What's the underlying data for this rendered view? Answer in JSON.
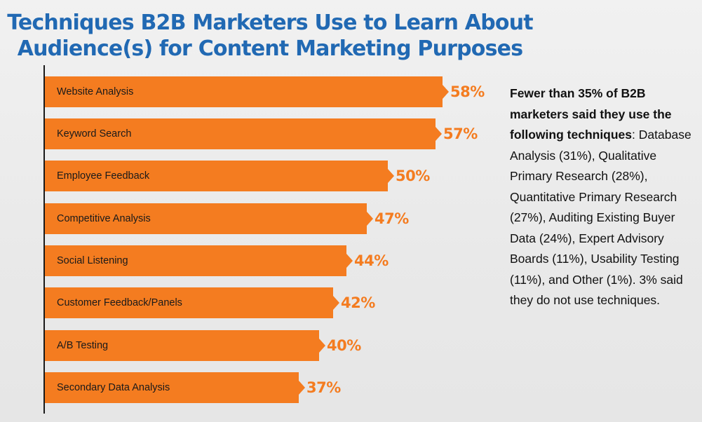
{
  "title_line1": "Techniques B2B Marketers Use to Learn About",
  "title_line2": "Audience(s) for Content Marketing Purposes",
  "colors": {
    "title": "#2169b3",
    "bar": "#f47c20",
    "text": "#111111"
  },
  "bars": [
    {
      "label": "Website Analysis",
      "value_text": "58%"
    },
    {
      "label": "Keyword Search",
      "value_text": "57%"
    },
    {
      "label": "Employee Feedback",
      "value_text": "50%"
    },
    {
      "label": "Competitive Analysis",
      "value_text": "47%"
    },
    {
      "label": "Social Listening",
      "value_text": "44%"
    },
    {
      "label": "Customer Feedback/Panels",
      "value_text": "42%"
    },
    {
      "label": "A/B Testing",
      "value_text": "40%"
    },
    {
      "label": "Secondary Data Analysis",
      "value_text": "37%"
    }
  ],
  "note": {
    "bold": "Fewer than 35% of B2B marketers said they use the following techniques",
    "colon": ":",
    "body": "Database Analysis (31%), Qualitative Primary Research (28%), Quantitative Primary Research (27%), Auditing Existing Buyer Data (24%), Expert Advisory Boards (11%), Usability Testing (11%), and Other (1%). 3% said they do not use techniques."
  },
  "chart_data": {
    "type": "bar",
    "orientation": "horizontal",
    "title": "Techniques B2B Marketers Use to Learn About Audience(s) for Content Marketing Purposes",
    "categories": [
      "Website Analysis",
      "Keyword Search",
      "Employee Feedback",
      "Competitive Analysis",
      "Social Listening",
      "Customer Feedback/Panels",
      "A/B Testing",
      "Secondary Data Analysis"
    ],
    "values": [
      58,
      57,
      50,
      47,
      44,
      42,
      40,
      37
    ],
    "unit": "%",
    "xlabel": "",
    "ylabel": "",
    "grid": false,
    "legend": null,
    "annotations": [
      "Fewer than 35% of B2B marketers said they use the following techniques: Database Analysis (31%), Qualitative Primary Research (28%), Quantitative Primary Research (27%), Auditing Existing Buyer Data (24%), Expert Advisory Boards (11%), Usability Testing (11%), and Other (1%). 3% said they do not use techniques."
    ],
    "other_techniques": [
      {
        "label": "Database Analysis",
        "value": 31
      },
      {
        "label": "Qualitative Primary Research",
        "value": 28
      },
      {
        "label": "Quantitative Primary Research",
        "value": 27
      },
      {
        "label": "Auditing Existing Buyer Data",
        "value": 24
      },
      {
        "label": "Expert Advisory Boards",
        "value": 11
      },
      {
        "label": "Usability Testing",
        "value": 11
      },
      {
        "label": "Other",
        "value": 1
      },
      {
        "label": "Do not use techniques",
        "value": 3
      }
    ]
  }
}
